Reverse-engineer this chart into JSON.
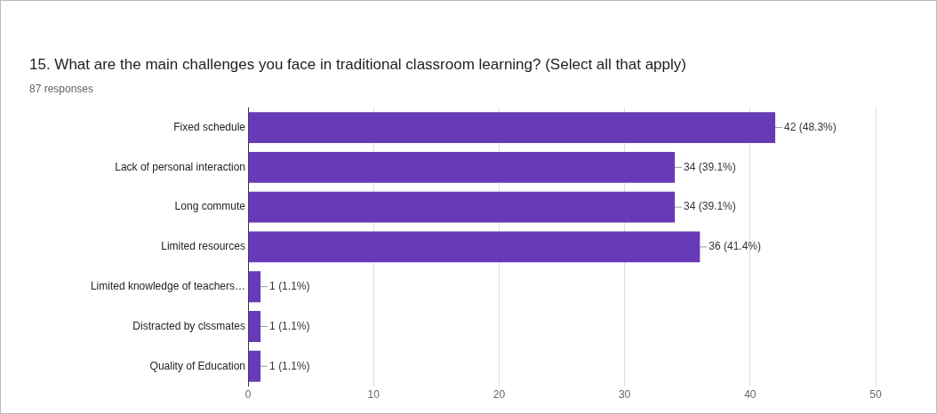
{
  "chart_data": {
    "type": "bar",
    "orientation": "horizontal",
    "title": "15. What are the main challenges you face in traditional classroom learning? (Select all that apply)",
    "subtitle": "87 responses",
    "categories": [
      "Fixed schedule",
      "Lack of personal interaction",
      "Long commute",
      "Limited resources",
      "Limited knowledge of teachers…",
      "Distracted by clssmates",
      "Quality of Education"
    ],
    "values": [
      42,
      34,
      34,
      36,
      1,
      1,
      1
    ],
    "value_labels": [
      "42 (48.3%)",
      "34 (39.1%)",
      "34 (39.1%)",
      "36 (41.4%)",
      "1 (1.1%)",
      "1 (1.1%)",
      "1 (1.1%)"
    ],
    "color": "#673ab7",
    "xlim": [
      0,
      50
    ],
    "xticks": [
      0,
      10,
      20,
      30,
      40,
      50
    ],
    "grid": "x",
    "legend": false
  }
}
